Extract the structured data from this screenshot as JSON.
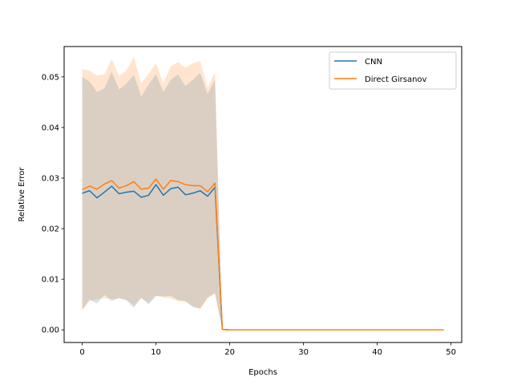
{
  "chart_data": {
    "type": "line",
    "title": "",
    "xlabel": "Epochs",
    "ylabel": "Relative Error",
    "xlim": [
      -2.45,
      51.45
    ],
    "ylim": [
      -0.0025,
      0.056
    ],
    "xticks": [
      0,
      10,
      20,
      30,
      40,
      50
    ],
    "yticks": [
      0.0,
      0.01,
      0.02,
      0.03,
      0.04,
      0.05
    ],
    "xtick_labels": [
      "0",
      "10",
      "20",
      "30",
      "40",
      "50"
    ],
    "ytick_labels": [
      "0.00",
      "0.01",
      "0.02",
      "0.03",
      "0.04",
      "0.05"
    ],
    "grid": false,
    "legend_position": "top-right",
    "x": [
      0,
      1,
      2,
      3,
      4,
      5,
      6,
      7,
      8,
      9,
      10,
      11,
      12,
      13,
      14,
      15,
      16,
      17,
      18,
      19,
      20,
      21,
      22,
      23,
      24,
      25,
      26,
      27,
      28,
      29,
      30,
      31,
      32,
      33,
      34,
      35,
      36,
      37,
      38,
      39,
      40,
      41,
      42,
      43,
      44,
      45,
      46,
      47,
      48,
      49
    ],
    "series": [
      {
        "name": "CNN",
        "color": "#1f77b4",
        "values": [
          0.027,
          0.0275,
          0.0261,
          0.0272,
          0.0284,
          0.0269,
          0.0272,
          0.0274,
          0.0262,
          0.0266,
          0.0287,
          0.0266,
          0.0279,
          0.0282,
          0.0267,
          0.027,
          0.0275,
          0.0264,
          0.0282,
          0.0001,
          0,
          0,
          0,
          0,
          0,
          0,
          0,
          0,
          0,
          0,
          0,
          0,
          0,
          0,
          0,
          0,
          0,
          0,
          0,
          0,
          0,
          0,
          0,
          0,
          0,
          0,
          0,
          0,
          0,
          0
        ],
        "band_lower": [
          0.004,
          0.006,
          0.0052,
          0.0069,
          0.0057,
          0.0063,
          0.0058,
          0.0044,
          0.0064,
          0.005,
          0.0067,
          0.0066,
          0.0067,
          0.0059,
          0.0057,
          0.0045,
          0.0043,
          0.0064,
          0.0073,
          0.0,
          0,
          0,
          0,
          0,
          0,
          0,
          0,
          0,
          0,
          0,
          0,
          0,
          0,
          0,
          0,
          0,
          0,
          0,
          0,
          0,
          0,
          0,
          0,
          0,
          0,
          0,
          0,
          0,
          0,
          0
        ],
        "band_upper": [
          0.05,
          0.0491,
          0.047,
          0.0477,
          0.051,
          0.0475,
          0.0487,
          0.0504,
          0.0461,
          0.0485,
          0.0505,
          0.047,
          0.0494,
          0.0505,
          0.0482,
          0.0494,
          0.0508,
          0.0466,
          0.0494,
          0.0002,
          0,
          0,
          0,
          0,
          0,
          0,
          0,
          0,
          0,
          0,
          0,
          0,
          0,
          0,
          0,
          0,
          0,
          0,
          0,
          0,
          0,
          0,
          0,
          0,
          0,
          0,
          0,
          0,
          0,
          0
        ]
      },
      {
        "name": "Direct Girsanov",
        "color": "#ff7f0e",
        "values": [
          0.0277,
          0.0284,
          0.0278,
          0.0288,
          0.0295,
          0.028,
          0.0285,
          0.0293,
          0.0278,
          0.028,
          0.0298,
          0.0278,
          0.0295,
          0.0293,
          0.0287,
          0.0285,
          0.0285,
          0.0273,
          0.029,
          0.0001,
          0,
          0,
          0,
          0,
          0,
          0,
          0,
          0,
          0,
          0,
          0,
          0,
          0,
          0,
          0,
          0,
          0,
          0,
          0,
          0,
          0,
          0,
          0,
          0,
          0,
          0,
          0,
          0,
          0,
          0
        ],
        "band_lower": [
          0.0038,
          0.0057,
          0.006,
          0.0063,
          0.0061,
          0.0062,
          0.006,
          0.0048,
          0.0062,
          0.0054,
          0.0068,
          0.0064,
          0.0062,
          0.0057,
          0.0055,
          0.0047,
          0.004,
          0.0062,
          0.0071,
          0.0,
          0,
          0,
          0,
          0,
          0,
          0,
          0,
          0,
          0,
          0,
          0,
          0,
          0,
          0,
          0,
          0,
          0,
          0,
          0,
          0,
          0,
          0,
          0,
          0,
          0,
          0,
          0,
          0,
          0,
          0
        ],
        "band_upper": [
          0.0516,
          0.0512,
          0.0503,
          0.0505,
          0.0535,
          0.0502,
          0.0513,
          0.054,
          0.0487,
          0.0506,
          0.0527,
          0.0487,
          0.0521,
          0.0529,
          0.0518,
          0.0527,
          0.0531,
          0.0478,
          0.0509,
          0.0002,
          0,
          0,
          0,
          0,
          0,
          0,
          0,
          0,
          0,
          0,
          0,
          0,
          0,
          0,
          0,
          0,
          0,
          0,
          0,
          0,
          0,
          0,
          0,
          0,
          0,
          0,
          0,
          0,
          0,
          0
        ]
      }
    ]
  }
}
